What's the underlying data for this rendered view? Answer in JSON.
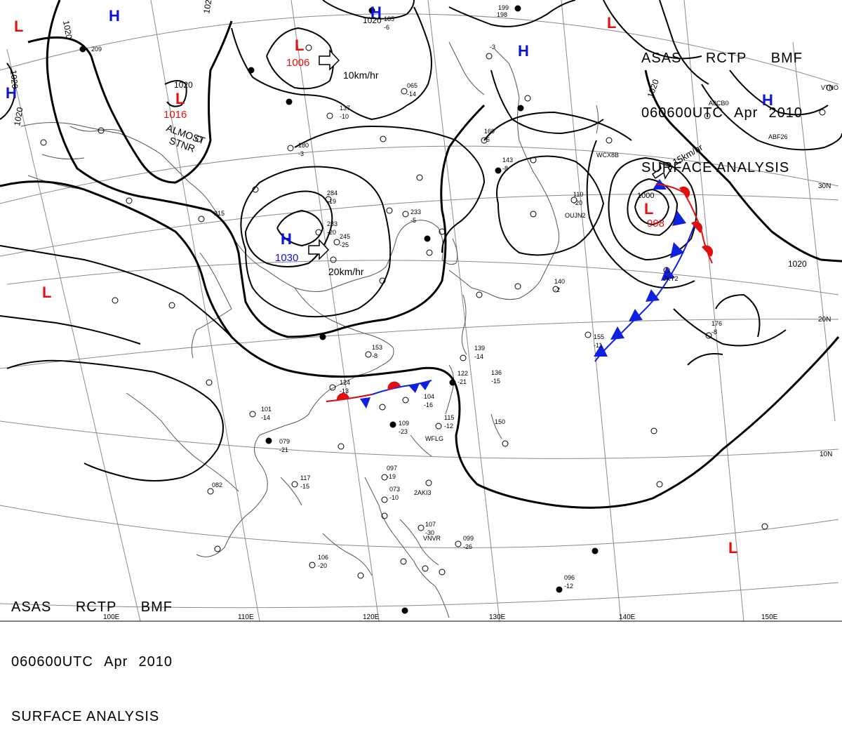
{
  "header": {
    "agency": "ASAS",
    "station": "RCTP",
    "product": "BMF",
    "time": "060600UTC",
    "month": "Apr",
    "year": "2010",
    "title": "SURFACE ANALYSIS"
  },
  "latitudes": [
    "30N",
    "20N",
    "10N"
  ],
  "longitudes": [
    "110E",
    "120E",
    "130E",
    "140E",
    "150E",
    "100E"
  ],
  "pressure_centers": [
    {
      "type": "H",
      "value": "1030"
    },
    {
      "type": "L",
      "value": "1006"
    },
    {
      "type": "L",
      "value": "1016"
    },
    {
      "type": "L",
      "value": "998"
    },
    {
      "type": "L",
      "value": "1000"
    }
  ],
  "isobar_labels": [
    "1020",
    "1020",
    "1020",
    "1020",
    "1020",
    "1020",
    "1020"
  ],
  "motion_labels": {
    "low_north": "10km/hr",
    "high": "20km/hr",
    "low_east": "15km/hr",
    "stationary": "ALMOST",
    "stationary2": "STNR"
  },
  "station_samples": [
    "284",
    "-19",
    "283",
    "-20",
    "245",
    "-25",
    "233",
    "-5",
    "153",
    "-8",
    "124",
    "-13",
    "101",
    "-14",
    "079",
    "-21",
    "150",
    "104",
    "-16",
    "115",
    "-12",
    "109",
    "-23",
    "122",
    "-21",
    "136",
    "-15",
    "176",
    "-8",
    "155",
    "-11",
    "139",
    "-14",
    "097",
    "-19",
    "073",
    "-10",
    "107",
    "-30",
    "099",
    "-26",
    "082",
    "117",
    "-15",
    "106",
    "-20",
    "096",
    "-12",
    "140",
    "-2",
    "110",
    "-20",
    "143",
    "-8",
    "169",
    "-5",
    "180",
    "-3",
    "137",
    "-10",
    "065",
    "-14",
    "215",
    "185",
    "-6",
    "199",
    "-3",
    "209",
    "198",
    "2AKI3",
    "WFLG",
    "WCX8B",
    "OUJN2",
    "ABF26",
    "A8CB0",
    "VTNO",
    "JKY2",
    "VNVR"
  ],
  "colors": {
    "high": "#0b14d8",
    "low": "#e8100c",
    "cold_front": "#1020e0",
    "warm_front": "#e01010",
    "isobar": "#000000",
    "grid": "#888888",
    "coast": "#555555"
  },
  "icons": [
    "cold-front-icon",
    "warm-front-icon",
    "movement-arrow-icon"
  ]
}
